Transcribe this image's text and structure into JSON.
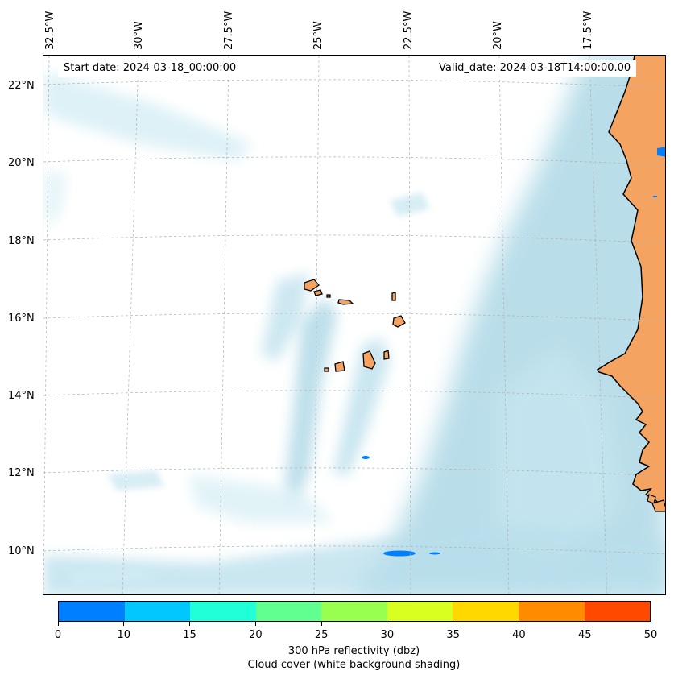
{
  "map": {
    "start_label": "Start date: 2024-03-18_00:00:00",
    "valid_label": "Valid_date: 2024-03-18T14:00:00.00",
    "lon_labels": [
      "32.5°W",
      "30°W",
      "27.5°W",
      "25°W",
      "22.5°W",
      "20°W",
      "17.5°W"
    ],
    "lat_labels": [
      "22°N",
      "20°N",
      "18°N",
      "16°N",
      "14°N",
      "12°N",
      "10°N"
    ],
    "colors": {
      "land": "#f4a460",
      "cloud": "#add8e6",
      "coast": "#000000",
      "reflectivity_low": "#0080ff"
    },
    "features": [
      "Cape Verde islands",
      "West African coast",
      "cloud cover shading",
      "reflectivity patches"
    ]
  },
  "colorbar": {
    "ticks": [
      "0",
      "10",
      "15",
      "20",
      "25",
      "30",
      "35",
      "40",
      "45",
      "50"
    ],
    "colors": [
      "#0080ff",
      "#00c8ff",
      "#20ffd8",
      "#60ff90",
      "#98ff50",
      "#d8ff20",
      "#ffd800",
      "#ff8c00",
      "#ff4800"
    ],
    "title_line1": "300 hPa reflectivity (dbz)",
    "title_line2": "Cloud cover (white background shading)"
  }
}
